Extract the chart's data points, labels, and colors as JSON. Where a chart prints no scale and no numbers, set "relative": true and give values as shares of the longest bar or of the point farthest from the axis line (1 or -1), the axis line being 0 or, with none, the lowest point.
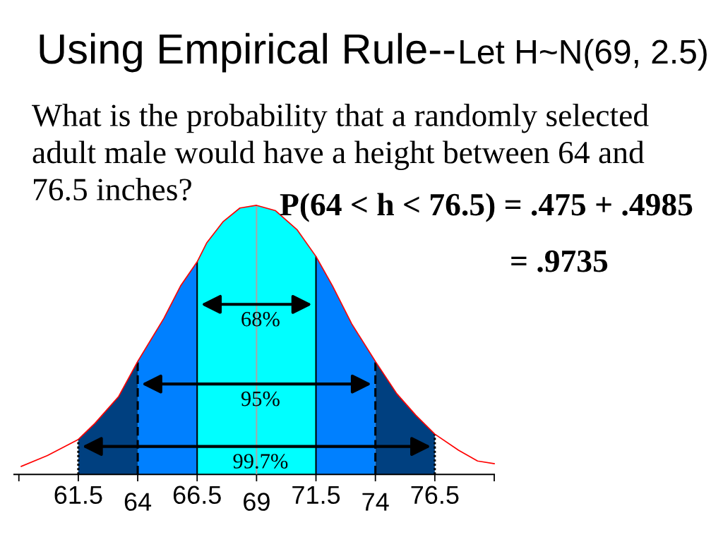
{
  "chart_data": {
    "type": "area",
    "title": "Using Empirical Rule--",
    "subtitle": "Let H~N(69, 2.5)",
    "relative": true,
    "series": [
      {
        "color": "#004080",
        "x": [
          61.5,
          62.2,
          63.2,
          64
        ],
        "values": [
          0.13,
          0.19,
          0.29,
          0.42
        ]
      },
      {
        "color": "#0080ff",
        "x": [
          64,
          65.1,
          65.8,
          66.5
        ],
        "values": [
          0.42,
          0.58,
          0.7,
          0.79
        ]
      },
      {
        "color": "#00ffff",
        "x": [
          66.5,
          66.9,
          67.6,
          68.3,
          69,
          69.8,
          70.7,
          71.5
        ],
        "values": [
          0.79,
          0.86,
          0.94,
          0.99,
          1,
          0.98,
          0.91,
          0.81
        ]
      },
      {
        "color": "#0080ff",
        "x": [
          71.5,
          72.2,
          73,
          74
        ],
        "values": [
          0.81,
          0.7,
          0.56,
          0.42
        ]
      },
      {
        "color": "#004080",
        "x": [
          74,
          74.9,
          75.7,
          76.5
        ],
        "values": [
          0.42,
          0.3,
          0.22,
          0.15
        ]
      },
      {
        "type": "line",
        "color": "#ff0000",
        "x": [
          59.1,
          60.2,
          61.5,
          62.2,
          63.2,
          64,
          65.1,
          65.8,
          66.5,
          66.9,
          67.6,
          68.3,
          69,
          69.8,
          70.7,
          71.5,
          72.2,
          73,
          74,
          74.9,
          75.7,
          76.5,
          77.5,
          78.3,
          79
        ],
        "values": [
          0.03,
          0.07,
          0.13,
          0.19,
          0.29,
          0.42,
          0.58,
          0.7,
          0.79,
          0.86,
          0.94,
          0.99,
          1,
          0.98,
          0.91,
          0.81,
          0.7,
          0.56,
          0.42,
          0.3,
          0.22,
          0.15,
          0.09,
          0.05,
          0.04
        ]
      }
    ],
    "xlim": [
      58.8,
      79
    ],
    "xticks": [
      {
        "value": 59,
        "label": null
      },
      61.5,
      64,
      66.5,
      69,
      71.5,
      74,
      76.5,
      {
        "value": 79,
        "label": null
      }
    ],
    "tick_labels": "x",
    "ref_lines": [
      {
        "axis": "x",
        "value": 61.5,
        "color": "#000000",
        "line_style": "dotted"
      },
      {
        "axis": "x",
        "value": 64,
        "color": "#000000",
        "line_style": "dashed"
      },
      {
        "axis": "x",
        "value": 66.5,
        "color": "#000000",
        "line_style": "solid"
      },
      {
        "axis": "x",
        "value": 69,
        "color": "#a6a6a6",
        "line_style": "solid"
      },
      {
        "axis": "x",
        "value": 71.5,
        "color": "#000000",
        "line_style": "solid"
      },
      {
        "axis": "x",
        "value": 74,
        "color": "#000000",
        "line_style": "dashed"
      },
      {
        "axis": "x",
        "value": 76.5,
        "color": "#000000",
        "line_style": "dotted"
      }
    ],
    "annotations": [
      "What is the probability that a randomly selected adult male would have a height between 64 and 76.5 inches?",
      "P(64 < h < 76.5) = .475 + .4985",
      "= .9735",
      "68%",
      "95%",
      "99.7%"
    ]
  }
}
